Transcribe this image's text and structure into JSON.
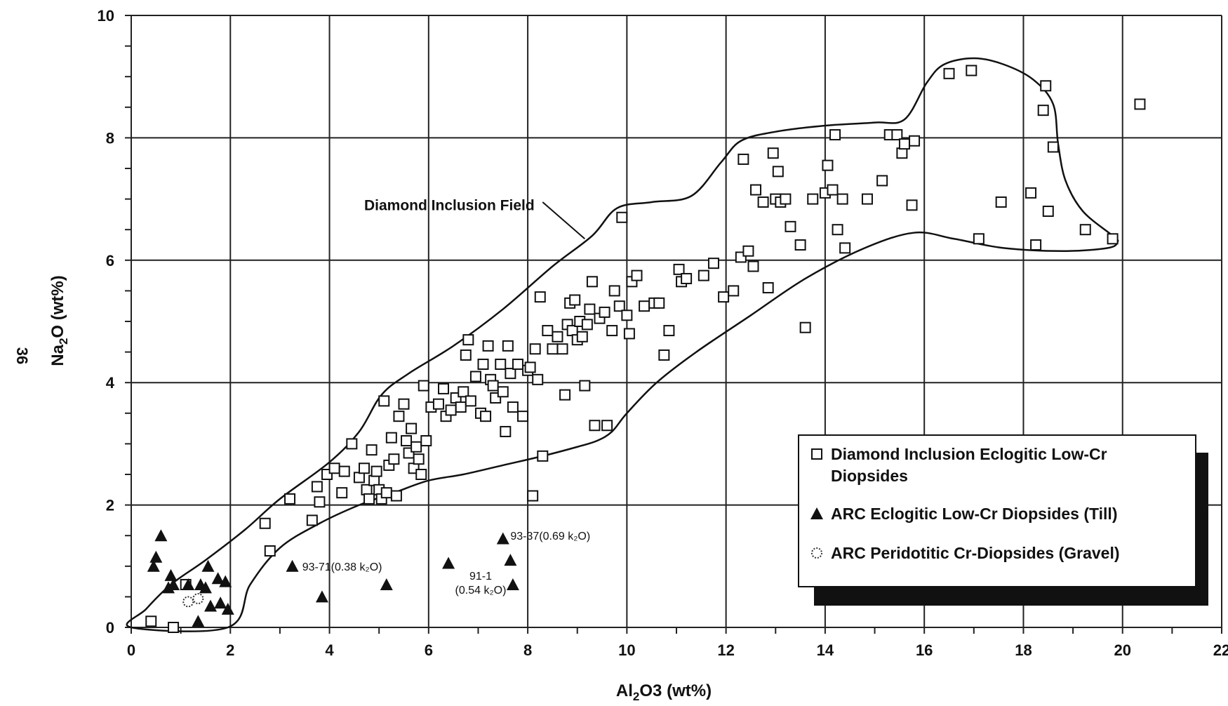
{
  "page_number": "36",
  "chart_data": {
    "type": "scatter",
    "title": "",
    "xlabel": "Al2O3 (wt%)",
    "ylabel": "Na2O (wt%)",
    "xlim": [
      0,
      22
    ],
    "ylim": [
      0,
      10
    ],
    "x_ticks": [
      0,
      2,
      4,
      6,
      8,
      10,
      12,
      14,
      16,
      18,
      20,
      22
    ],
    "y_ticks": [
      0,
      2,
      4,
      6,
      8,
      10
    ],
    "grid": true,
    "legend_position": "bottom-right",
    "field_label": "Diamond Inclusion Field",
    "series": [
      {
        "name": "Diamond Inclusion Eclogitic Low-Cr Diopsides",
        "marker": "open-square",
        "points": [
          [
            0.4,
            0.1
          ],
          [
            0.85,
            0.0
          ],
          [
            1.1,
            0.7
          ],
          [
            2.7,
            1.7
          ],
          [
            2.8,
            1.25
          ],
          [
            3.2,
            2.1
          ],
          [
            3.65,
            1.75
          ],
          [
            3.8,
            2.05
          ],
          [
            3.75,
            2.3
          ],
          [
            3.95,
            2.5
          ],
          [
            4.1,
            2.6
          ],
          [
            4.25,
            2.2
          ],
          [
            4.3,
            2.55
          ],
          [
            4.45,
            3.0
          ],
          [
            4.6,
            2.45
          ],
          [
            4.7,
            2.6
          ],
          [
            4.75,
            2.25
          ],
          [
            4.8,
            2.1
          ],
          [
            4.85,
            2.9
          ],
          [
            4.9,
            2.4
          ],
          [
            4.95,
            2.55
          ],
          [
            5.0,
            2.25
          ],
          [
            5.05,
            2.1
          ],
          [
            5.1,
            3.7
          ],
          [
            5.15,
            2.2
          ],
          [
            5.2,
            2.65
          ],
          [
            5.25,
            3.1
          ],
          [
            5.3,
            2.75
          ],
          [
            5.35,
            2.15
          ],
          [
            5.4,
            3.45
          ],
          [
            5.5,
            3.65
          ],
          [
            5.55,
            3.05
          ],
          [
            5.6,
            2.85
          ],
          [
            5.65,
            3.25
          ],
          [
            5.7,
            2.6
          ],
          [
            5.75,
            2.95
          ],
          [
            5.85,
            2.5
          ],
          [
            5.8,
            2.75
          ],
          [
            5.9,
            3.95
          ],
          [
            5.95,
            3.05
          ],
          [
            6.05,
            3.6
          ],
          [
            6.2,
            3.65
          ],
          [
            6.3,
            3.9
          ],
          [
            6.35,
            3.45
          ],
          [
            6.45,
            3.55
          ],
          [
            6.55,
            3.75
          ],
          [
            6.65,
            3.6
          ],
          [
            6.7,
            3.85
          ],
          [
            6.75,
            4.45
          ],
          [
            6.8,
            4.7
          ],
          [
            6.85,
            3.7
          ],
          [
            6.95,
            4.1
          ],
          [
            7.05,
            3.5
          ],
          [
            7.1,
            4.3
          ],
          [
            7.15,
            3.45
          ],
          [
            7.2,
            4.6
          ],
          [
            7.25,
            4.05
          ],
          [
            7.3,
            3.95
          ],
          [
            7.35,
            3.75
          ],
          [
            7.45,
            4.3
          ],
          [
            7.5,
            3.85
          ],
          [
            7.55,
            3.2
          ],
          [
            7.6,
            4.6
          ],
          [
            7.65,
            4.15
          ],
          [
            7.7,
            3.6
          ],
          [
            7.8,
            4.3
          ],
          [
            7.9,
            3.45
          ],
          [
            8.0,
            4.2
          ],
          [
            8.05,
            4.25
          ],
          [
            8.1,
            2.15
          ],
          [
            8.15,
            4.55
          ],
          [
            8.2,
            4.05
          ],
          [
            8.25,
            5.4
          ],
          [
            8.3,
            2.8
          ],
          [
            8.4,
            4.85
          ],
          [
            8.5,
            4.55
          ],
          [
            8.6,
            4.75
          ],
          [
            8.7,
            4.55
          ],
          [
            8.75,
            3.8
          ],
          [
            8.8,
            4.95
          ],
          [
            8.85,
            5.3
          ],
          [
            8.9,
            4.85
          ],
          [
            8.95,
            5.35
          ],
          [
            9.0,
            4.7
          ],
          [
            9.05,
            5.0
          ],
          [
            9.1,
            4.75
          ],
          [
            9.15,
            3.95
          ],
          [
            9.2,
            4.95
          ],
          [
            9.25,
            5.2
          ],
          [
            9.3,
            5.65
          ],
          [
            9.35,
            3.3
          ],
          [
            9.45,
            5.05
          ],
          [
            9.55,
            5.15
          ],
          [
            9.6,
            3.3
          ],
          [
            9.7,
            4.85
          ],
          [
            9.75,
            5.5
          ],
          [
            9.85,
            5.25
          ],
          [
            9.9,
            6.7
          ],
          [
            10.0,
            5.1
          ],
          [
            10.05,
            4.8
          ],
          [
            10.1,
            5.65
          ],
          [
            10.2,
            5.75
          ],
          [
            10.35,
            5.25
          ],
          [
            10.55,
            5.3
          ],
          [
            10.65,
            5.3
          ],
          [
            10.75,
            4.45
          ],
          [
            10.85,
            4.85
          ],
          [
            11.05,
            5.85
          ],
          [
            11.1,
            5.65
          ],
          [
            11.2,
            5.7
          ],
          [
            11.55,
            5.75
          ],
          [
            11.75,
            5.95
          ],
          [
            11.95,
            5.4
          ],
          [
            12.15,
            5.5
          ],
          [
            12.3,
            6.05
          ],
          [
            12.45,
            6.15
          ],
          [
            12.55,
            5.9
          ],
          [
            12.35,
            7.65
          ],
          [
            12.6,
            7.15
          ],
          [
            12.75,
            6.95
          ],
          [
            12.85,
            5.55
          ],
          [
            12.95,
            7.75
          ],
          [
            13.0,
            7.0
          ],
          [
            13.05,
            7.45
          ],
          [
            13.1,
            6.95
          ],
          [
            13.2,
            7.0
          ],
          [
            13.3,
            6.55
          ],
          [
            13.5,
            6.25
          ],
          [
            13.6,
            4.9
          ],
          [
            13.75,
            7.0
          ],
          [
            14.0,
            7.1
          ],
          [
            14.05,
            7.55
          ],
          [
            14.15,
            7.15
          ],
          [
            14.2,
            8.05
          ],
          [
            14.25,
            6.5
          ],
          [
            14.35,
            7.0
          ],
          [
            14.4,
            6.2
          ],
          [
            14.85,
            7.0
          ],
          [
            15.15,
            7.3
          ],
          [
            15.3,
            8.05
          ],
          [
            15.45,
            8.05
          ],
          [
            15.55,
            7.75
          ],
          [
            15.6,
            7.9
          ],
          [
            15.75,
            6.9
          ],
          [
            15.8,
            7.95
          ],
          [
            16.5,
            9.05
          ],
          [
            16.95,
            9.1
          ],
          [
            17.1,
            6.35
          ],
          [
            17.55,
            6.95
          ],
          [
            18.15,
            7.1
          ],
          [
            18.25,
            6.25
          ],
          [
            18.4,
            8.45
          ],
          [
            18.45,
            8.85
          ],
          [
            18.5,
            6.8
          ],
          [
            18.6,
            7.85
          ],
          [
            19.25,
            6.5
          ],
          [
            19.8,
            6.35
          ],
          [
            20.35,
            8.55
          ]
        ]
      },
      {
        "name": "ARC Eclogitic Low-Cr Diopsides (Till)",
        "marker": "filled-triangle",
        "points": [
          [
            0.45,
            1.0
          ],
          [
            0.5,
            1.15
          ],
          [
            0.6,
            1.5
          ],
          [
            0.75,
            0.65
          ],
          [
            0.8,
            0.85
          ],
          [
            0.85,
            0.7
          ],
          [
            1.15,
            0.7
          ],
          [
            1.35,
            0.1
          ],
          [
            1.4,
            0.7
          ],
          [
            1.5,
            0.65
          ],
          [
            1.55,
            1.0
          ],
          [
            1.6,
            0.35
          ],
          [
            1.75,
            0.8
          ],
          [
            1.8,
            0.4
          ],
          [
            1.9,
            0.75
          ],
          [
            1.95,
            0.3
          ],
          [
            3.25,
            1.0
          ],
          [
            3.85,
            0.5
          ],
          [
            5.15,
            0.7
          ],
          [
            6.4,
            1.05
          ],
          [
            7.5,
            1.45
          ],
          [
            7.65,
            1.1
          ],
          [
            7.7,
            0.7
          ]
        ]
      },
      {
        "name": "ARC Peridotitic Cr-Diopsides (Gravel)",
        "marker": "dotted-circle",
        "points": [
          [
            1.15,
            0.42
          ],
          [
            1.35,
            0.47
          ]
        ]
      }
    ],
    "annotations": [
      {
        "text": "93-71(0.38 k₂O)",
        "x": 3.45,
        "y": 1.0
      },
      {
        "text": "93-37(0.69 k₂O)",
        "x": 7.65,
        "y": 1.5
      },
      {
        "text": "91-1",
        "x": 7.05,
        "y": 0.85
      },
      {
        "text": "(0.54 k₂O)",
        "x": 7.05,
        "y": 0.62
      }
    ],
    "field_boundary": [
      [
        0.0,
        0.0
      ],
      [
        0.3,
        0.3
      ],
      [
        0.8,
        0.7
      ],
      [
        1.5,
        1.1
      ],
      [
        2.3,
        1.6
      ],
      [
        3.0,
        2.1
      ],
      [
        4.0,
        2.7
      ],
      [
        4.6,
        3.2
      ],
      [
        5.05,
        3.8
      ],
      [
        5.6,
        4.15
      ],
      [
        6.5,
        4.6
      ],
      [
        7.5,
        5.2
      ],
      [
        8.5,
        5.9
      ],
      [
        9.3,
        6.4
      ],
      [
        9.8,
        6.85
      ],
      [
        10.5,
        6.95
      ],
      [
        11.3,
        7.05
      ],
      [
        11.9,
        7.6
      ],
      [
        12.3,
        7.95
      ],
      [
        13.0,
        8.1
      ],
      [
        14.0,
        8.2
      ],
      [
        15.0,
        8.25
      ],
      [
        15.6,
        8.3
      ],
      [
        16.05,
        8.9
      ],
      [
        16.4,
        9.2
      ],
      [
        17.0,
        9.3
      ],
      [
        17.6,
        9.2
      ],
      [
        18.2,
        8.95
      ],
      [
        18.6,
        8.55
      ],
      [
        18.7,
        7.9
      ],
      [
        18.85,
        7.3
      ],
      [
        19.2,
        6.8
      ],
      [
        19.8,
        6.4
      ],
      [
        19.9,
        6.3
      ],
      [
        19.7,
        6.2
      ],
      [
        18.8,
        6.15
      ],
      [
        17.6,
        6.2
      ],
      [
        16.6,
        6.35
      ],
      [
        15.8,
        6.45
      ],
      [
        14.8,
        6.2
      ],
      [
        13.6,
        5.7
      ],
      [
        12.5,
        5.1
      ],
      [
        11.4,
        4.5
      ],
      [
        10.6,
        4.0
      ],
      [
        10.0,
        3.5
      ],
      [
        9.7,
        3.2
      ],
      [
        9.4,
        3.05
      ],
      [
        9.0,
        2.95
      ],
      [
        8.3,
        2.8
      ],
      [
        7.5,
        2.65
      ],
      [
        6.7,
        2.5
      ],
      [
        6.0,
        2.4
      ],
      [
        5.3,
        2.2
      ],
      [
        4.6,
        2.0
      ],
      [
        3.8,
        1.7
      ],
      [
        3.0,
        1.3
      ],
      [
        2.4,
        0.7
      ],
      [
        1.95,
        0.0
      ]
    ]
  }
}
